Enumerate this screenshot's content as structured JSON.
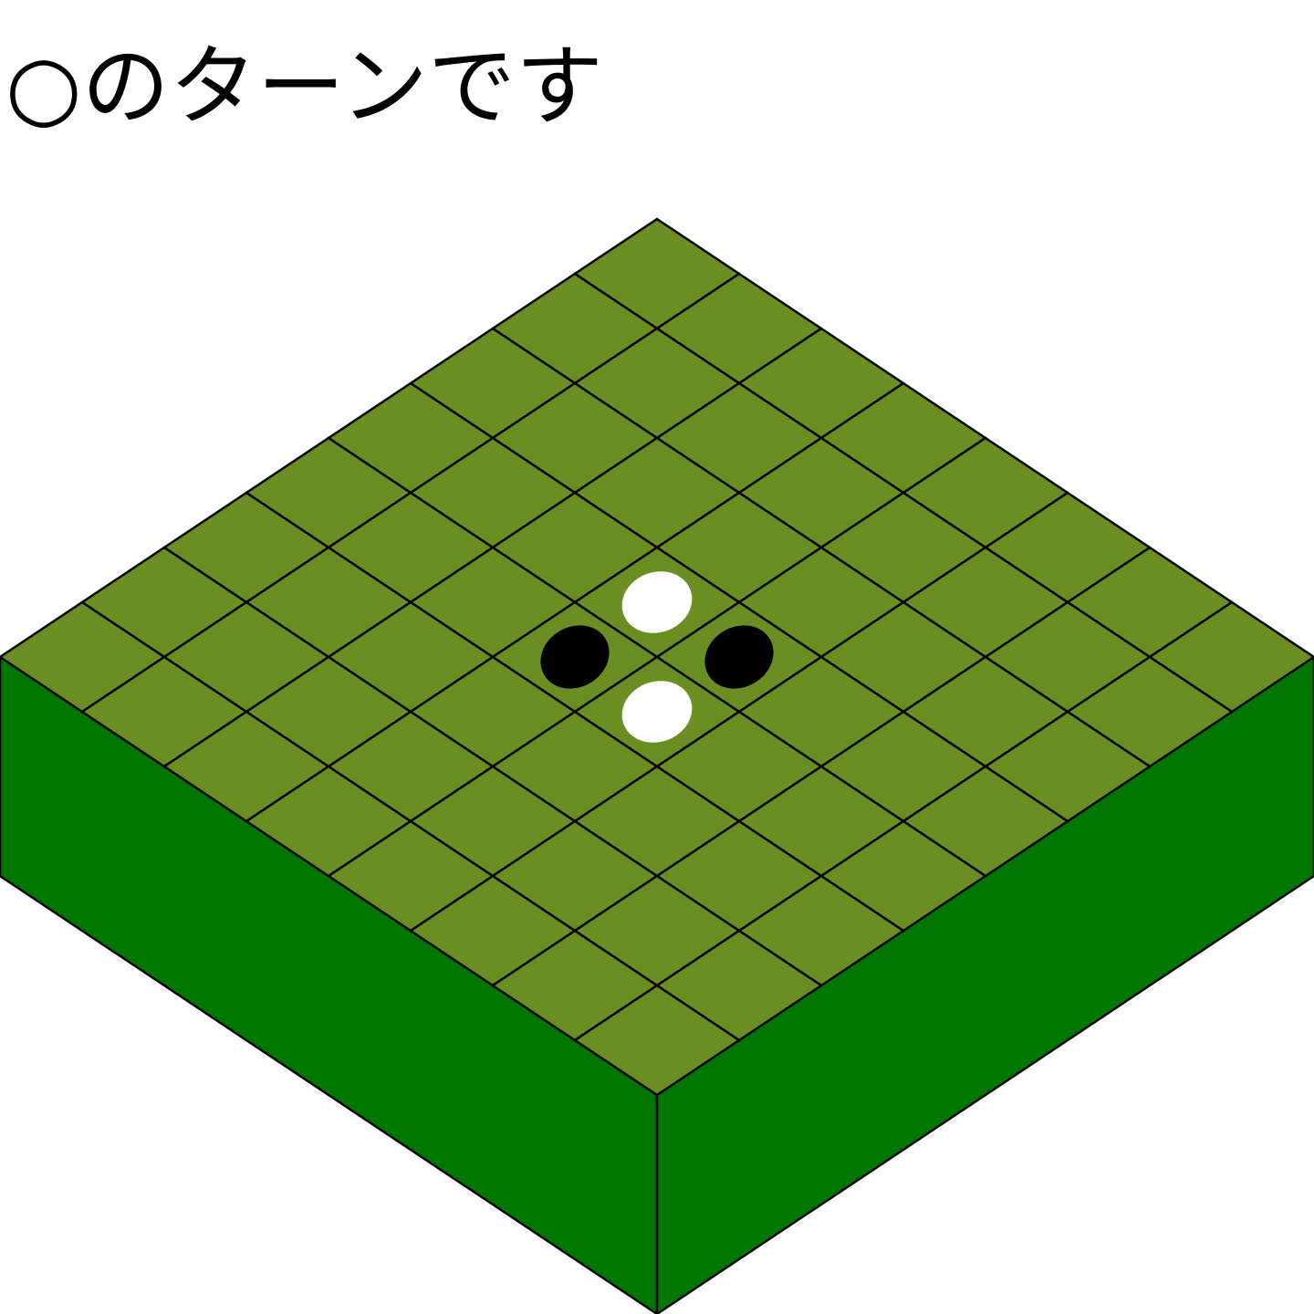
{
  "status": {
    "turn_text": "○のターンです"
  },
  "board": {
    "size": 8,
    "colors": {
      "top": "#6b8e23",
      "left_side": "#007800",
      "right_side": "#007800",
      "grid_line": "#000000",
      "black_piece": "#000000",
      "white_piece": "#ffffff"
    },
    "cells": [
      [
        "",
        "",
        "",
        "",
        "",
        "",
        "",
        ""
      ],
      [
        "",
        "",
        "",
        "",
        "",
        "",
        "",
        ""
      ],
      [
        "",
        "",
        "",
        "",
        "",
        "",
        "",
        ""
      ],
      [
        "",
        "",
        "",
        "white",
        "black",
        "",
        "",
        ""
      ],
      [
        "",
        "",
        "",
        "black",
        "white",
        "",
        "",
        ""
      ],
      [
        "",
        "",
        "",
        "",
        "",
        "",
        "",
        ""
      ],
      [
        "",
        "",
        "",
        "",
        "",
        "",
        "",
        ""
      ],
      [
        "",
        "",
        "",
        "",
        "",
        "",
        "",
        ""
      ]
    ]
  }
}
